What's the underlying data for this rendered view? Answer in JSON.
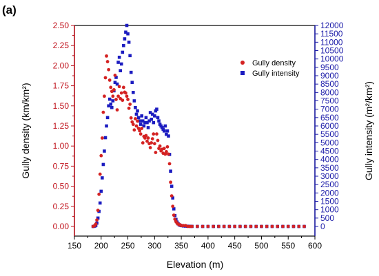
{
  "panel_label": "(a)",
  "chart_data": {
    "type": "scatter",
    "xlabel": "Elevation (m)",
    "ylabel_left": "Gully density (km/km²)",
    "ylabel_right": "Gully intensity (m²/km²)",
    "xlim": [
      150,
      600
    ],
    "ylim_left": [
      -0.12,
      2.5
    ],
    "ylim_right": [
      -575,
      12000
    ],
    "x_ticks": [
      "150",
      "200",
      "250",
      "300",
      "350",
      "400",
      "450",
      "500",
      "550",
      "600"
    ],
    "y_left_ticks": [
      "0.00",
      "0.25",
      "0.50",
      "0.75",
      "1.00",
      "1.25",
      "1.50",
      "1.75",
      "2.00",
      "2.25",
      "2.50"
    ],
    "y_right_ticks": [
      "0",
      "500",
      "1000",
      "1500",
      "2000",
      "2500",
      "3000",
      "3500",
      "4000",
      "4500",
      "5000",
      "5500",
      "6000",
      "6500",
      "7000",
      "7500",
      "8000",
      "8500",
      "9000",
      "9500",
      "10000",
      "10500",
      "11000",
      "11500",
      "12000"
    ],
    "legend": {
      "position": "top-right",
      "entries": [
        "Gully density",
        "Gully intensity"
      ]
    },
    "colors": {
      "density": "#d42222",
      "intensity": "#1c1cc0",
      "left_axis": "#c0121c",
      "right_axis": "#1a1aa8"
    },
    "series": [
      {
        "name": "Gully density",
        "marker": "circle",
        "axis": "left",
        "x": [
          185,
          188,
          190,
          192,
          194,
          196,
          198,
          200,
          202,
          204,
          206,
          208,
          210,
          212,
          214,
          216,
          218,
          220,
          222,
          224,
          226,
          228,
          230,
          232,
          234,
          236,
          238,
          240,
          242,
          244,
          246,
          248,
          250,
          252,
          254,
          256,
          258,
          260,
          262,
          264,
          266,
          268,
          270,
          272,
          274,
          276,
          278,
          280,
          282,
          284,
          286,
          288,
          290,
          292,
          294,
          296,
          298,
          300,
          302,
          304,
          306,
          308,
          310,
          312,
          314,
          316,
          318,
          320,
          322,
          324,
          326,
          328,
          330,
          332,
          334,
          336,
          338,
          340,
          342,
          344,
          346,
          348,
          350,
          354,
          358,
          362,
          366,
          370,
          380,
          390,
          400,
          410,
          420,
          430,
          440,
          450,
          460,
          470,
          480,
          490,
          500,
          510,
          520,
          530,
          540,
          550,
          560,
          570,
          580
        ],
        "y": [
          0.0,
          0.01,
          0.03,
          0.08,
          0.2,
          0.4,
          0.65,
          0.88,
          1.1,
          1.42,
          1.62,
          1.85,
          2.12,
          2.05,
          1.95,
          1.82,
          1.73,
          1.68,
          1.62,
          1.7,
          1.88,
          1.58,
          1.45,
          1.62,
          1.74,
          1.59,
          1.66,
          1.57,
          1.73,
          1.67,
          1.66,
          1.62,
          1.58,
          1.47,
          1.52,
          1.35,
          1.3,
          1.27,
          1.2,
          1.34,
          1.25,
          1.31,
          1.22,
          1.19,
          1.15,
          1.22,
          1.04,
          1.12,
          1.1,
          1.13,
          1.06,
          1.1,
          1.03,
          0.98,
          1.04,
          1.09,
          1.15,
          1.03,
          0.92,
          1.15,
          1.07,
          0.97,
          1.0,
          0.94,
          0.96,
          0.91,
          0.97,
          0.9,
          0.93,
          0.99,
          0.9,
          0.78,
          0.55,
          0.38,
          0.25,
          0.14,
          0.09,
          0.06,
          0.04,
          0.03,
          0.02,
          0.02,
          0.01,
          0.01,
          0.01,
          0.0,
          0.0,
          0.0,
          0.0,
          0.0,
          0.0,
          0.0,
          0.0,
          0.0,
          0.0,
          0.0,
          0.0,
          0.0,
          0.0,
          0.0,
          0.0,
          0.0,
          0.0,
          0.0,
          0.0,
          0.0,
          0.0,
          0.0,
          0.0
        ]
      },
      {
        "name": "Gully intensity",
        "marker": "square",
        "axis": "right",
        "x": [
          185,
          188,
          190,
          192,
          194,
          196,
          198,
          200,
          202,
          204,
          206,
          208,
          210,
          212,
          214,
          216,
          218,
          220,
          222,
          224,
          226,
          228,
          230,
          232,
          234,
          236,
          238,
          240,
          242,
          244,
          246,
          248,
          250,
          252,
          254,
          256,
          258,
          260,
          262,
          264,
          266,
          268,
          270,
          272,
          274,
          276,
          278,
          280,
          282,
          284,
          286,
          288,
          290,
          292,
          294,
          296,
          298,
          300,
          302,
          304,
          306,
          308,
          310,
          312,
          314,
          316,
          318,
          320,
          322,
          324,
          326,
          328,
          330,
          332,
          334,
          336,
          338,
          340,
          342,
          344,
          346,
          348,
          350,
          354,
          358,
          362,
          366,
          370,
          380,
          390,
          400,
          410,
          420,
          430,
          440,
          450,
          460,
          470,
          480,
          490,
          500,
          510,
          520,
          530,
          540,
          550,
          560,
          570,
          580
        ],
        "y": [
          0,
          20,
          60,
          200,
          500,
          900,
          1400,
          2100,
          2900,
          3700,
          4500,
          5300,
          6000,
          6500,
          7200,
          7600,
          7300,
          7100,
          7500,
          8100,
          8600,
          8900,
          8500,
          9800,
          10100,
          9300,
          9700,
          10400,
          10800,
          11200,
          11600,
          12000,
          11500,
          11000,
          10200,
          9200,
          8600,
          8000,
          7500,
          7100,
          6700,
          6900,
          6500,
          6300,
          6100,
          6600,
          6300,
          6000,
          6200,
          6500,
          6200,
          5900,
          6300,
          6800,
          6400,
          6700,
          6200,
          6600,
          6900,
          7000,
          6500,
          6300,
          6100,
          6000,
          5900,
          5800,
          5700,
          6000,
          5500,
          5700,
          5400,
          4300,
          3300,
          2400,
          1700,
          1050,
          650,
          420,
          260,
          160,
          100,
          70,
          50,
          30,
          20,
          12,
          6,
          3,
          2,
          0,
          0,
          0,
          0,
          0,
          0,
          0,
          0,
          0,
          0,
          0,
          0,
          0,
          0,
          0,
          0,
          0,
          0,
          0,
          0
        ]
      }
    ]
  }
}
